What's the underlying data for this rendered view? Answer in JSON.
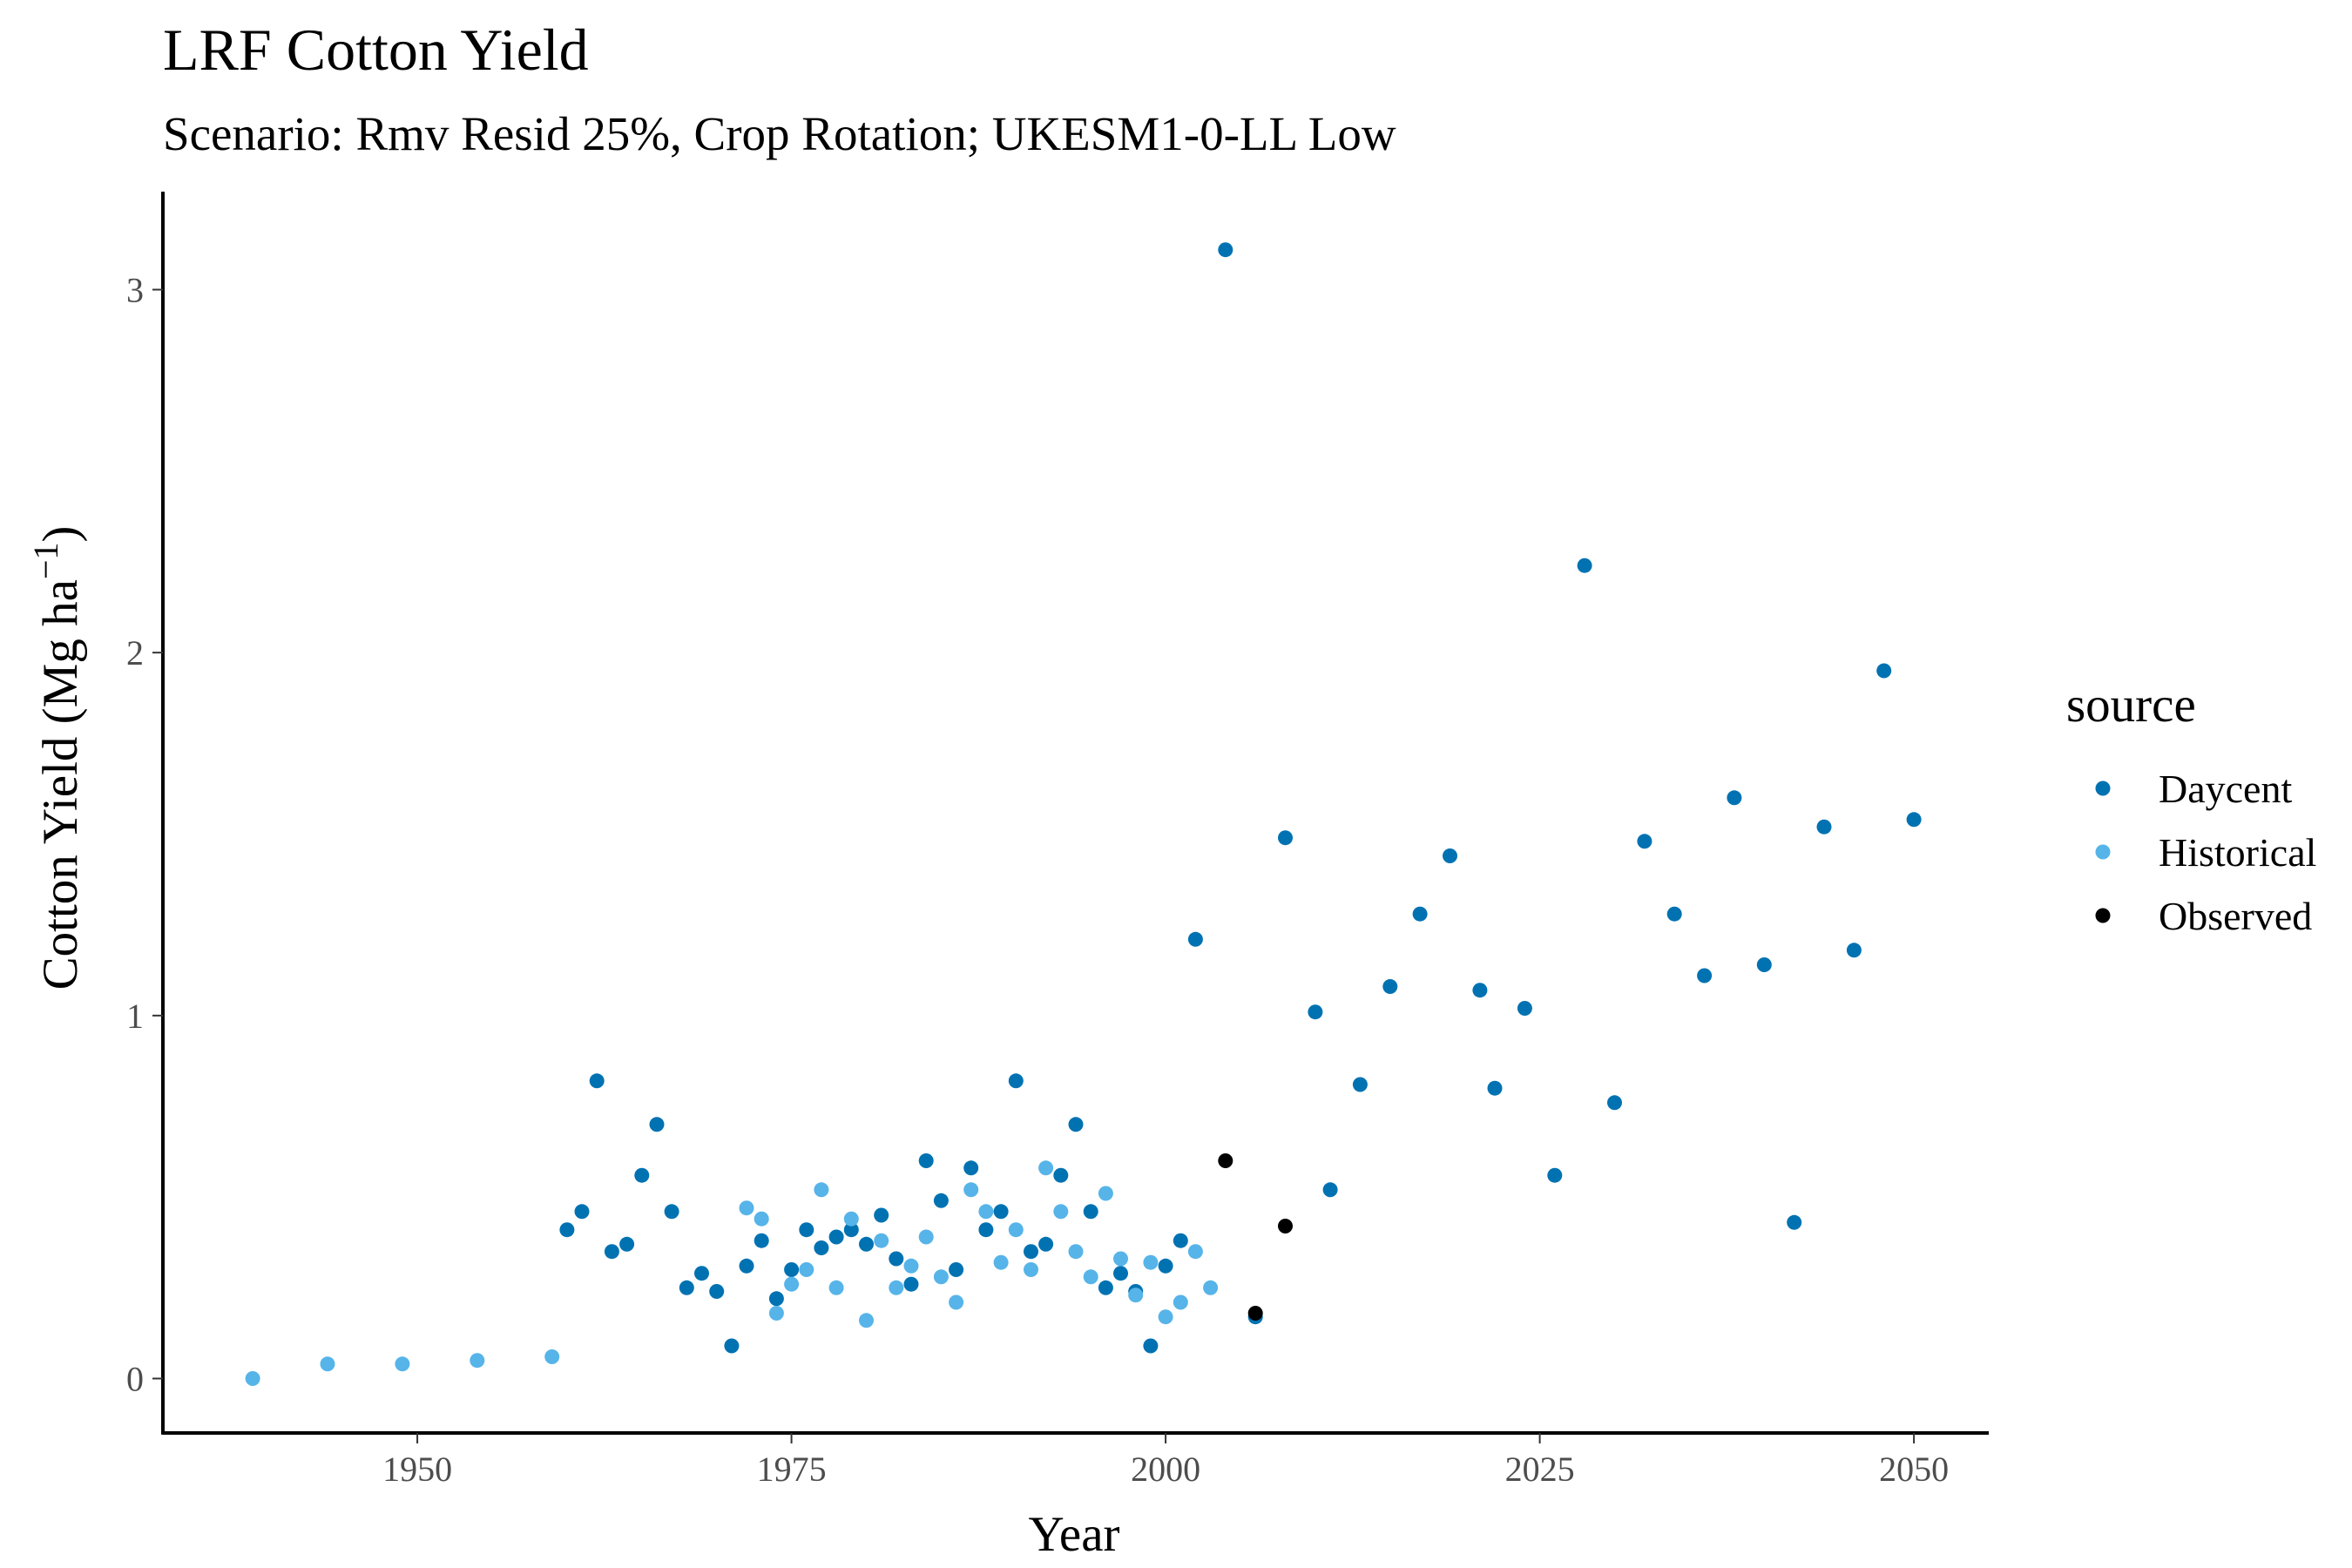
{
  "colors": {
    "Daycent": "#0072B2",
    "Historical": "#56B4E9",
    "Observed": "#000000"
  },
  "chart_data": {
    "type": "scatter",
    "title": "LRF Cotton Yield",
    "subtitle": "Scenario: Rmv Resid 25%, Crop Rotation; UKESM1-0-LL Low",
    "xlabel": "Year",
    "ylabel": "Cotton Yield (Mg ha",
    "ylabel_superscript": "−1",
    "ylabel_close": ")",
    "xlim": [
      1933,
      2055
    ],
    "ylim": [
      -0.15,
      3.27
    ],
    "xticks": [
      1950,
      1975,
      2000,
      2025,
      2050
    ],
    "yticks": [
      0,
      1,
      2,
      3
    ],
    "grid": false,
    "legend": {
      "title": "source",
      "position": "right",
      "entries": [
        "Daycent",
        "Historical",
        "Observed"
      ]
    },
    "series": [
      {
        "name": "Daycent",
        "points": [
          [
            1960,
            0.41
          ],
          [
            1961,
            0.46
          ],
          [
            1962,
            0.82
          ],
          [
            1963,
            0.35
          ],
          [
            1964,
            0.37
          ],
          [
            1965,
            0.56
          ],
          [
            1966,
            0.7
          ],
          [
            1967,
            0.46
          ],
          [
            1968,
            0.25
          ],
          [
            1969,
            0.29
          ],
          [
            1970,
            0.24
          ],
          [
            1971,
            0.09
          ],
          [
            1972,
            0.31
          ],
          [
            1973,
            0.38
          ],
          [
            1974,
            0.22
          ],
          [
            1975,
            0.3
          ],
          [
            1976,
            0.41
          ],
          [
            1977,
            0.36
          ],
          [
            1978,
            0.39
          ],
          [
            1979,
            0.41
          ],
          [
            1980,
            0.37
          ],
          [
            1981,
            0.45
          ],
          [
            1982,
            0.33
          ],
          [
            1983,
            0.26
          ],
          [
            1984,
            0.6
          ],
          [
            1985,
            0.49
          ],
          [
            1986,
            0.3
          ],
          [
            1987,
            0.58
          ],
          [
            1988,
            0.41
          ],
          [
            1989,
            0.46
          ],
          [
            1990,
            0.82
          ],
          [
            1991,
            0.35
          ],
          [
            1992,
            0.37
          ],
          [
            1993,
            0.56
          ],
          [
            1994,
            0.7
          ],
          [
            1995,
            0.46
          ],
          [
            1996,
            0.25
          ],
          [
            1997,
            0.29
          ],
          [
            1998,
            0.24
          ],
          [
            1999,
            0.09
          ],
          [
            2000,
            0.31
          ],
          [
            2001,
            0.38
          ],
          [
            2002,
            1.21
          ],
          [
            2004,
            3.11
          ],
          [
            2006,
            0.17
          ],
          [
            2008,
            1.49
          ],
          [
            2010,
            1.01
          ],
          [
            2011,
            0.52
          ],
          [
            2013,
            0.81
          ],
          [
            2015,
            1.08
          ],
          [
            2017,
            1.28
          ],
          [
            2019,
            1.44
          ],
          [
            2021,
            1.07
          ],
          [
            2022,
            0.8
          ],
          [
            2024,
            1.02
          ],
          [
            2026,
            0.56
          ],
          [
            2028,
            2.24
          ],
          [
            2030,
            0.76
          ],
          [
            2032,
            1.48
          ],
          [
            2034,
            1.28
          ],
          [
            2036,
            1.11
          ],
          [
            2038,
            1.6
          ],
          [
            2040,
            1.14
          ],
          [
            2042,
            0.43
          ],
          [
            2044,
            1.52
          ],
          [
            2046,
            1.18
          ],
          [
            2048,
            1.95
          ],
          [
            2050,
            1.54
          ]
        ]
      },
      {
        "name": "Historical",
        "points": [
          [
            1939,
            0.0
          ],
          [
            1944,
            0.04
          ],
          [
            1949,
            0.04
          ],
          [
            1954,
            0.05
          ],
          [
            1959,
            0.06
          ],
          [
            1972,
            0.47
          ],
          [
            1973,
            0.44
          ],
          [
            1974,
            0.18
          ],
          [
            1975,
            0.26
          ],
          [
            1976,
            0.3
          ],
          [
            1977,
            0.52
          ],
          [
            1978,
            0.25
          ],
          [
            1979,
            0.44
          ],
          [
            1980,
            0.16
          ],
          [
            1981,
            0.38
          ],
          [
            1982,
            0.25
          ],
          [
            1983,
            0.31
          ],
          [
            1984,
            0.39
          ],
          [
            1985,
            0.28
          ],
          [
            1986,
            0.21
          ],
          [
            1987,
            0.52
          ],
          [
            1988,
            0.46
          ],
          [
            1989,
            0.32
          ],
          [
            1990,
            0.41
          ],
          [
            1991,
            0.3
          ],
          [
            1992,
            0.58
          ],
          [
            1993,
            0.46
          ],
          [
            1994,
            0.35
          ],
          [
            1995,
            0.28
          ],
          [
            1996,
            0.51
          ],
          [
            1997,
            0.33
          ],
          [
            1998,
            0.23
          ],
          [
            1999,
            0.32
          ],
          [
            2000,
            0.17
          ],
          [
            2001,
            0.21
          ],
          [
            2002,
            0.35
          ],
          [
            2003,
            0.25
          ]
        ]
      },
      {
        "name": "Observed",
        "points": [
          [
            2004,
            0.6
          ],
          [
            2006,
            0.18
          ],
          [
            2008,
            0.42
          ]
        ]
      }
    ]
  }
}
